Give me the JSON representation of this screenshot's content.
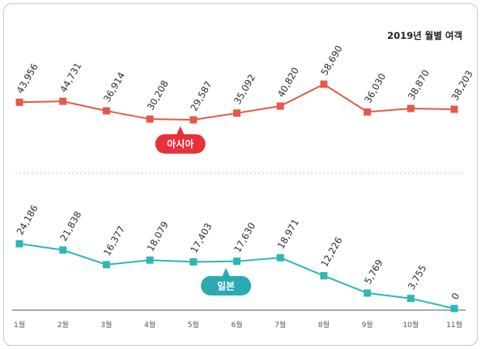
{
  "chart_data": {
    "type": "line",
    "title": "2019년 월별 여객",
    "categories": [
      "1월",
      "2월",
      "3월",
      "4월",
      "5월",
      "6월",
      "7월",
      "8월",
      "9월",
      "10월",
      "11월"
    ],
    "series": [
      {
        "name": "아시아",
        "color": "#e25a4a",
        "badge_color": "#e8303a",
        "values": [
          43956,
          44731,
          36914,
          30208,
          29587,
          35092,
          40820,
          58690,
          36030,
          38870,
          38203
        ],
        "labels": [
          "43,956",
          "44,731",
          "36,914",
          "30,208",
          "29,587",
          "35,092",
          "40,820",
          "58,690",
          "36,030",
          "38,870",
          "38,203"
        ]
      },
      {
        "name": "일본",
        "color": "#2cb8b4",
        "badge_color": "#2aaab0",
        "values": [
          24186,
          21838,
          16377,
          18079,
          17403,
          17630,
          18971,
          12226,
          5769,
          3755,
          0
        ],
        "labels": [
          "24,186",
          "21,838",
          "16,377",
          "18,079",
          "17,403",
          "17,630",
          "18,971",
          "12,226",
          "5,769",
          "3,755",
          "0"
        ]
      }
    ],
    "grid": false
  }
}
